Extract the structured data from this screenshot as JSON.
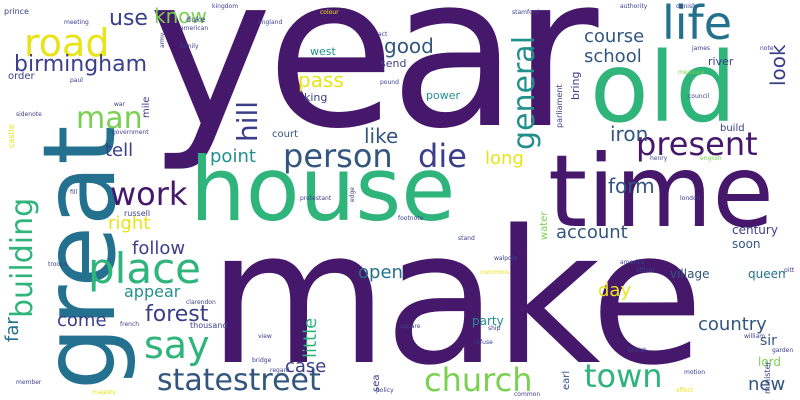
{
  "palette": {
    "purple": "#46186b",
    "indigo": "#3b3f8a",
    "slate": "#33567f",
    "teal": "#23718e",
    "teal_green": "#21908c",
    "green": "#2fb47c",
    "lime": "#7ad151",
    "yellow_green": "#b4dd2b",
    "yellow": "#e8e419"
  },
  "words": {
    "year": "year",
    "make": "make",
    "house": "house",
    "time": "time",
    "great": "great",
    "old": "old",
    "life": "life",
    "road": "road",
    "birmingham": "birmingham",
    "man": "man",
    "place": "place",
    "say": "say",
    "building": "building",
    "work": "work",
    "person": "person",
    "die": "die",
    "present": "present",
    "church": "church",
    "town": "town",
    "statestreet": "statestreet",
    "general": "general",
    "hill": "hill",
    "forest": "forest",
    "follow": "follow",
    "country": "country",
    "account": "account",
    "school": "school",
    "course": "course",
    "look": "look",
    "good": "good",
    "use": "use",
    "know": "know",
    "pass": "pass",
    "iron": "iron",
    "like": "like",
    "point": "point",
    "tell": "tell",
    "right": "right",
    "long": "long",
    "form": "form",
    "appear": "appear",
    "open": "open",
    "day": "day",
    "come": "come",
    "little": "little",
    "case": "case",
    "new": "new",
    "far": "far",
    "sir": "sir",
    "village": "village",
    "party": "party",
    "queen": "queen",
    "lord": "lord",
    "century": "century",
    "soon": "soon",
    "west": "west",
    "king": "king",
    "send": "send",
    "power": "power",
    "river": "river",
    "bring": "bring",
    "court": "court",
    "water": "water",
    "order": "order",
    "mile": "mile",
    "build": "build",
    "thousand": "thousand",
    "earl": "earl",
    "sea": "sea",
    "parliament": "parliament",
    "castle": "castle",
    "russell": "russell",
    "prince": "prince",
    "meeting": "meeting",
    "duke": "duke",
    "american": "american",
    "england": "england",
    "act": "act",
    "government": "government",
    "war": "war",
    "james": "james",
    "note": "note",
    "measure": "measure",
    "english": "english",
    "london": "london",
    "america": "america",
    "officer": "officer",
    "french": "french",
    "british": "british",
    "policy": "policy",
    "ship": "ship",
    "view": "view",
    "member": "member",
    "majesty": "majesty",
    "minister": "minister",
    "clarendon": "clarendon",
    "stand": "stand",
    "footnote": "footnote",
    "motion": "motion",
    "effect": "effect",
    "common": "common",
    "troops": "troops",
    "square": "square",
    "walpole": "walpole",
    "commons": "commons",
    "william": "william",
    "garden": "garden",
    "pitt": "pitt",
    "protestant": "protestant",
    "sidenote": "sidenote",
    "paul": "paul",
    "army": "army",
    "family": "family",
    "kingdom": "kingdom",
    "colour": "colour",
    "stamford": "stamford",
    "authority": "authority",
    "danish": "danish",
    "council": "council",
    "bridge": "bridge",
    "regard": "regard",
    "refuse": "refuse",
    "henry": "henry",
    "pound": "pound",
    "fill": "fill",
    "edge": "edge"
  }
}
